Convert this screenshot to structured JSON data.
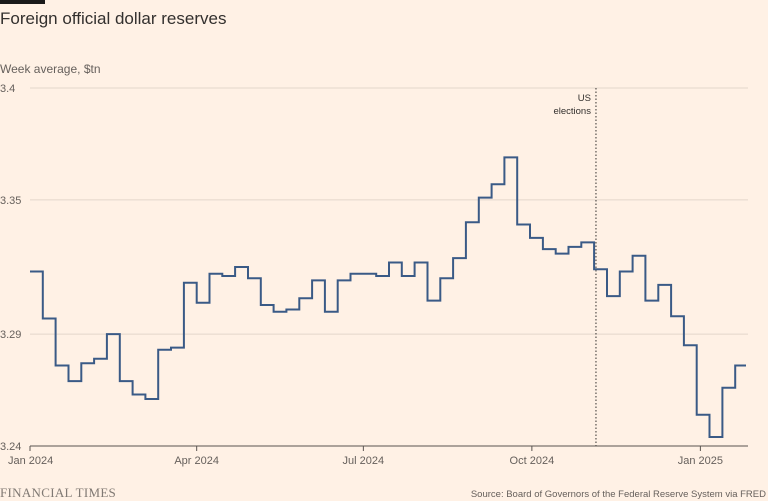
{
  "title": "Foreign official dollar reserves",
  "footer": {
    "brand": "FINANCIAL TIMES",
    "source": "Source: Board of Governors of the Federal Reserve System via FRED"
  },
  "colors": {
    "background": "#fff1e5",
    "line": "#3a5a86",
    "grid": "#e3d6cb",
    "axis": "#5a5450"
  },
  "chart_data": {
    "type": "line",
    "step": true,
    "ylabel": "Week average, $tn",
    "ylim": [
      3.24,
      3.4
    ],
    "yticks": [
      3.24,
      3.29,
      3.35,
      3.4
    ],
    "xlim": [
      "2024-01-01",
      "2025-01-27"
    ],
    "xticks": [
      {
        "date": "2024-01-01",
        "label": "Jan 2024"
      },
      {
        "date": "2024-04-01",
        "label": "Apr 2024"
      },
      {
        "date": "2024-07-01",
        "label": "Jul 2024"
      },
      {
        "date": "2024-10-01",
        "label": "Oct 2024"
      },
      {
        "date": "2025-01-01",
        "label": "Jan 2025"
      }
    ],
    "grid": true,
    "annotations": [
      {
        "date": "2024-11-05",
        "lines": [
          "US",
          "elections"
        ],
        "style": "dotted-vertical"
      }
    ],
    "series": [
      {
        "x": [
          "2024-01-01",
          "2024-01-08",
          "2024-01-15",
          "2024-01-22",
          "2024-01-29",
          "2024-02-05",
          "2024-02-12",
          "2024-02-19",
          "2024-02-26",
          "2024-03-04",
          "2024-03-11",
          "2024-03-18",
          "2024-03-25",
          "2024-04-01",
          "2024-04-08",
          "2024-04-15",
          "2024-04-22",
          "2024-04-29",
          "2024-05-06",
          "2024-05-13",
          "2024-05-20",
          "2024-05-27",
          "2024-06-03",
          "2024-06-10",
          "2024-06-17",
          "2024-06-24",
          "2024-07-01",
          "2024-07-08",
          "2024-07-15",
          "2024-07-22",
          "2024-07-29",
          "2024-08-05",
          "2024-08-12",
          "2024-08-19",
          "2024-08-26",
          "2024-09-02",
          "2024-09-09",
          "2024-09-16",
          "2024-09-23",
          "2024-09-30",
          "2024-10-07",
          "2024-10-14",
          "2024-10-21",
          "2024-10-28",
          "2024-11-04",
          "2024-11-11",
          "2024-11-18",
          "2024-11-25",
          "2024-12-02",
          "2024-12-09",
          "2024-12-16",
          "2024-12-23",
          "2024-12-30",
          "2025-01-06",
          "2025-01-13",
          "2025-01-20"
        ],
        "values": [
          3.318,
          3.297,
          3.276,
          3.269,
          3.277,
          3.279,
          3.29,
          3.269,
          3.263,
          3.261,
          3.283,
          3.284,
          3.313,
          3.304,
          3.317,
          3.316,
          3.32,
          3.315,
          3.303,
          3.3,
          3.301,
          3.306,
          3.314,
          3.3,
          3.314,
          3.317,
          3.317,
          3.316,
          3.322,
          3.316,
          3.322,
          3.305,
          3.315,
          3.324,
          3.34,
          3.351,
          3.357,
          3.369,
          3.339,
          3.333,
          3.328,
          3.326,
          3.329,
          3.331,
          3.319,
          3.307,
          3.318,
          3.325,
          3.305,
          3.312,
          3.298,
          3.285,
          3.254,
          3.244,
          3.266,
          3.276
        ]
      }
    ]
  }
}
